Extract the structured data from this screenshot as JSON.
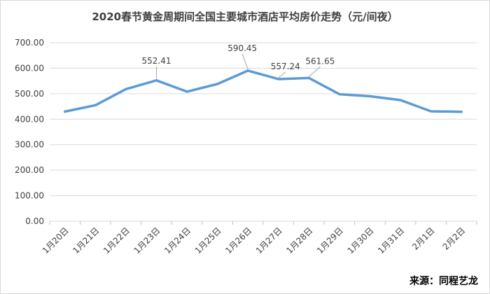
{
  "chart_data": {
    "type": "line",
    "title": "2020春节黄金周期间全国主要城市酒店平均房价走势（元/间夜）",
    "xlabel": "",
    "ylabel": "",
    "categories": [
      "1月20日",
      "1月21日",
      "1月22日",
      "1月23日",
      "1月24日",
      "1月25日",
      "1月26日",
      "1月27日",
      "1月28日",
      "1月29日",
      "1月30日",
      "1月31日",
      "2月1日",
      "2月2日"
    ],
    "series": [
      {
        "values": [
          430,
          455,
          518,
          552.41,
          508,
          538,
          590.45,
          557.24,
          561.65,
          498,
          490,
          475,
          431,
          429
        ]
      }
    ],
    "data_labels": [
      {
        "index": 3,
        "text": "552.41",
        "color": "#404040"
      },
      {
        "index": 6,
        "text": "590.45",
        "color": "#ff0000"
      },
      {
        "index": 7,
        "text": "557.24",
        "color": "#404040"
      },
      {
        "index": 8,
        "text": "561.65",
        "color": "#404040"
      }
    ],
    "yticks": [
      "0.00",
      "100.00",
      "200.00",
      "300.00",
      "400.00",
      "500.00",
      "600.00",
      "700.00"
    ],
    "ylim": [
      0,
      700
    ],
    "grid": true,
    "line_color": "#5b9bd5",
    "source": "来源：同程艺龙"
  }
}
